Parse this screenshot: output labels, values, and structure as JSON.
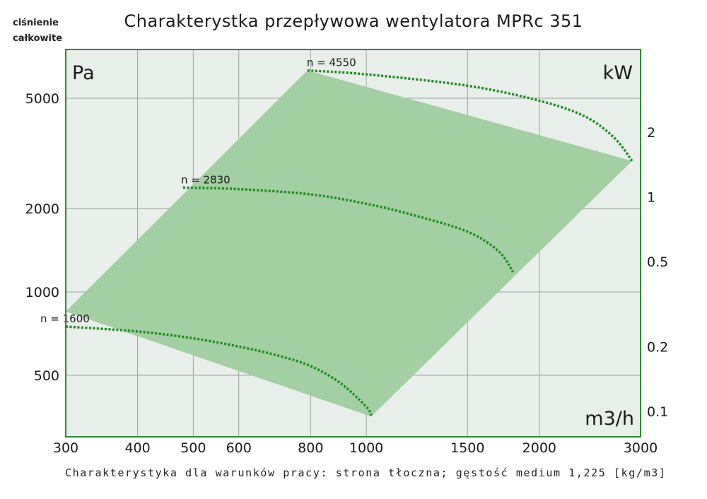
{
  "chart_data": {
    "type": "line",
    "title": "Charakterystka przepływowa wentylatora MPRc 351",
    "ylabel_side": "ciśnienie całkowite",
    "y_unit": "Pa",
    "y2_unit": "kW",
    "x_unit": "m3/h",
    "footnote": "Charakterystyka dla warunków pracy: strona tłoczna; gęstość medium 1,225 [kg/m3]",
    "x_scale": "log",
    "y_scale": "log",
    "xlim": [
      300,
      3000
    ],
    "ylim": [
      300,
      7500
    ],
    "x_ticks": [
      300,
      400,
      500,
      600,
      800,
      1000,
      1500,
      2000,
      3000
    ],
    "x_tick_labels": [
      "300",
      "400",
      "500",
      "600",
      "800",
      "1000",
      "1500",
      "2000",
      "3000"
    ],
    "y_ticks": [
      500,
      1000,
      2000,
      5000
    ],
    "y_tick_labels": [
      "500",
      "1000",
      "2000",
      "5000"
    ],
    "y2_ticks": [
      0.1,
      0.2,
      0.5,
      1,
      2
    ],
    "y2_tick_labels": [
      "0.1",
      "0.2",
      "0.5",
      "1",
      "2"
    ],
    "grid": true,
    "operating_region": [
      [
        300,
        850
      ],
      [
        790,
        6300
      ],
      [
        2900,
        2970
      ],
      [
        1020,
        355
      ]
    ],
    "series": [
      {
        "name": "n = 1600",
        "label": "n = 1600",
        "x": [
          300,
          400,
          500,
          600,
          700,
          800,
          900,
          1000,
          1020
        ],
        "y": [
          750,
          720,
          680,
          635,
          590,
          540,
          470,
          385,
          358
        ]
      },
      {
        "name": "n = 2830",
        "label": "n = 2830",
        "x": [
          480,
          600,
          800,
          1000,
          1200,
          1500,
          1700,
          1800
        ],
        "y": [
          2380,
          2350,
          2250,
          2080,
          1900,
          1650,
          1400,
          1180
        ]
      },
      {
        "name": "n = 4550",
        "label": "n = 4550",
        "x": [
          790,
          1000,
          1500,
          2000,
          2400,
          2700,
          2900
        ],
        "y": [
          6300,
          6100,
          5550,
          4900,
          4300,
          3600,
          2970
        ]
      }
    ]
  }
}
